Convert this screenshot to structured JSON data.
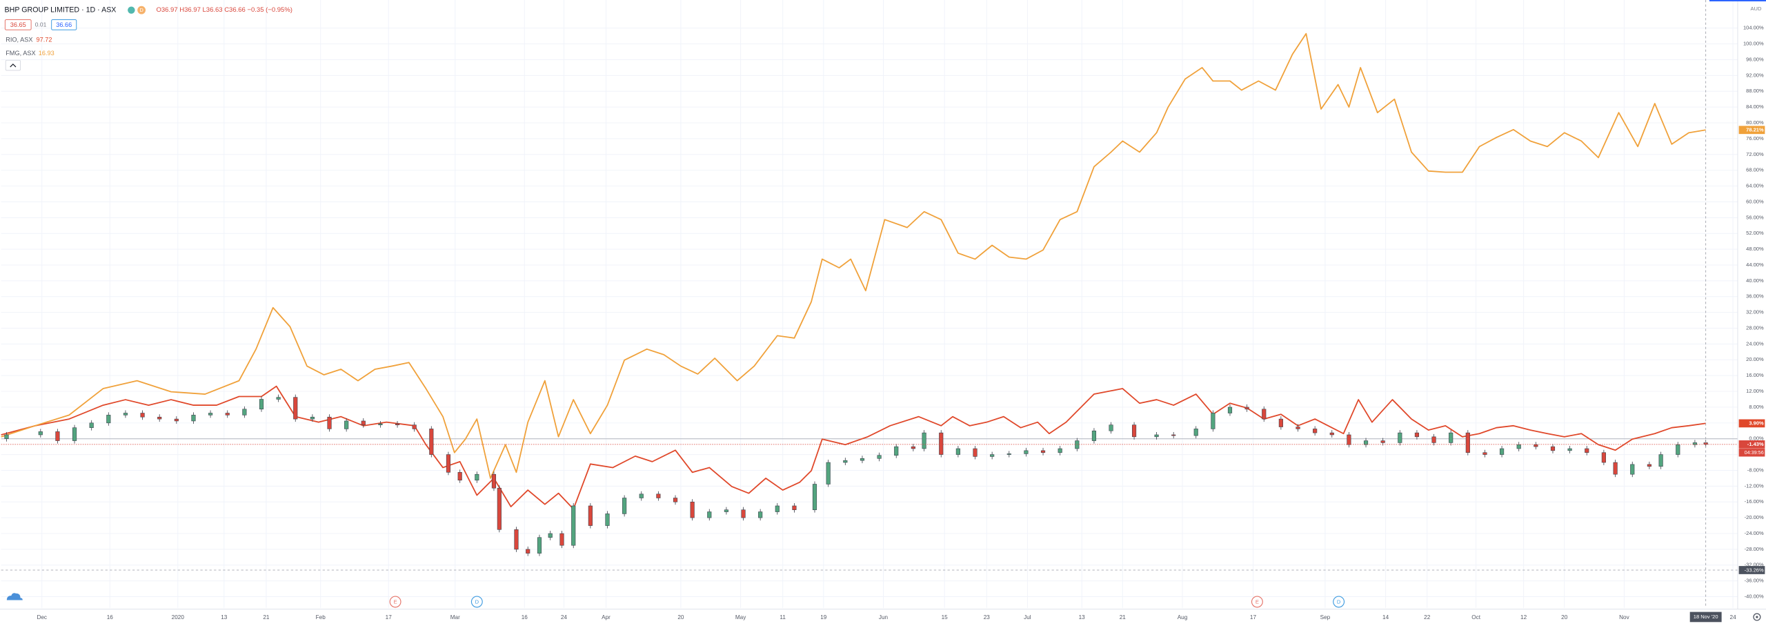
{
  "chart_data": {
    "type": "candlestick",
    "title": "BHP GROUP LIMITED · 1D · ASX",
    "interval_badge": "D",
    "ohlc_text": "O36.97 H36.97 L36.63 C36.66 −0.35 (−0.95%)",
    "bid": "36.65",
    "spread": "0.01",
    "ask": "36.66",
    "currency": "AUD",
    "grid": true,
    "baseline": 0,
    "xlim": [
      0,
      255.5
    ],
    "ylim": [
      -42.86,
      111.12
    ],
    "xticks": [
      {
        "value": 6,
        "label": "Dec"
      },
      {
        "value": 16,
        "label": "16"
      },
      {
        "value": 26,
        "label": "2020"
      },
      {
        "value": 32.8,
        "label": "13"
      },
      {
        "value": 39,
        "label": "21"
      },
      {
        "value": 47,
        "label": "Feb"
      },
      {
        "value": 57,
        "label": "17"
      },
      {
        "value": 66.8,
        "label": "Mar"
      },
      {
        "value": 77,
        "label": "16"
      },
      {
        "value": 82.8,
        "label": "24"
      },
      {
        "value": 89,
        "label": "Apr"
      },
      {
        "value": 100,
        "label": "20"
      },
      {
        "value": 108.8,
        "label": "May"
      },
      {
        "value": 115,
        "label": "11"
      },
      {
        "value": 121,
        "label": "19"
      },
      {
        "value": 129.8,
        "label": "Jun"
      },
      {
        "value": 138.8,
        "label": "15"
      },
      {
        "value": 145,
        "label": "23"
      },
      {
        "value": 151,
        "label": "Jul"
      },
      {
        "value": 159,
        "label": "13"
      },
      {
        "value": 165,
        "label": "21"
      },
      {
        "value": 173.8,
        "label": "Aug"
      },
      {
        "value": 184.2,
        "label": "17"
      },
      {
        "value": 194.8,
        "label": "Sep"
      },
      {
        "value": 203.7,
        "label": "14"
      },
      {
        "value": 209.8,
        "label": "22"
      },
      {
        "value": 217,
        "label": "Oct"
      },
      {
        "value": 224,
        "label": "12"
      },
      {
        "value": 230,
        "label": "20"
      },
      {
        "value": 238.8,
        "label": "Nov"
      },
      {
        "value": 254.8,
        "label": "24"
      }
    ],
    "yticks": [
      {
        "value": -40,
        "label": "-40.00%"
      },
      {
        "value": -36,
        "label": "-36.00%"
      },
      {
        "value": -32,
        "label": "-32.00%"
      },
      {
        "value": -28,
        "label": "-28.00%"
      },
      {
        "value": -24,
        "label": "-24.00%"
      },
      {
        "value": -20,
        "label": "-20.00%"
      },
      {
        "value": -16,
        "label": "-16.00%"
      },
      {
        "value": -12,
        "label": "-12.00%"
      },
      {
        "value": -8,
        "label": "-8.00%"
      },
      {
        "value": -4,
        "label": "-4.00%"
      },
      {
        "value": 0,
        "label": "0.00%"
      },
      {
        "value": 4,
        "label": "4.00%"
      },
      {
        "value": 8,
        "label": "8.00%"
      },
      {
        "value": 12,
        "label": "12.00%"
      },
      {
        "value": 16,
        "label": "16.00%"
      },
      {
        "value": 20,
        "label": "20.00%"
      },
      {
        "value": 24,
        "label": "24.00%"
      },
      {
        "value": 28,
        "label": "28.00%"
      },
      {
        "value": 32,
        "label": "32.00%"
      },
      {
        "value": 36,
        "label": "36.00%"
      },
      {
        "value": 40,
        "label": "40.00%"
      },
      {
        "value": 44,
        "label": "44.00%"
      },
      {
        "value": 48,
        "label": "48.00%"
      },
      {
        "value": 52,
        "label": "52.00%"
      },
      {
        "value": 56,
        "label": "56.00%"
      },
      {
        "value": 60,
        "label": "60.00%"
      },
      {
        "value": 64,
        "label": "64.00%"
      },
      {
        "value": 68,
        "label": "68.00%"
      },
      {
        "value": 72,
        "label": "72.00%"
      },
      {
        "value": 76,
        "label": "76.00%"
      },
      {
        "value": 80,
        "label": "80.00%"
      },
      {
        "value": 84,
        "label": "84.00%"
      },
      {
        "value": 88,
        "label": "88.00%"
      },
      {
        "value": 92,
        "label": "92.00%"
      },
      {
        "value": 96,
        "label": "96.00%"
      },
      {
        "value": 100,
        "label": "100.00%"
      },
      {
        "value": 104,
        "label": "104.00%"
      }
    ],
    "series": [
      {
        "name": "BHP GROUP LIMITED",
        "type": "candlestick",
        "up_color": "#53a57f",
        "down_color": "#d9473c",
        "last_label": "-1.43%",
        "countdown": "04:39:56",
        "x": [
          0.8,
          5.8,
          8.3,
          10.8,
          13.3,
          15.8,
          18.3,
          20.8,
          23.3,
          25.8,
          28.3,
          30.8,
          33.3,
          35.8,
          38.3,
          40.8,
          43.3,
          45.8,
          48.3,
          50.8,
          53.3,
          55.8,
          58.3,
          60.8,
          63.3,
          65.8,
          67.5,
          70,
          72.5,
          73.3,
          75.8,
          77.5,
          79.2,
          80.8,
          82.5,
          84.2,
          86.7,
          89.2,
          91.7,
          94.2,
          96.7,
          99.2,
          101.7,
          104.2,
          106.7,
          109.2,
          111.7,
          114.2,
          116.7,
          119.7,
          121.7,
          124.2,
          126.7,
          129.2,
          131.7,
          134.2,
          135.8,
          138.3,
          140.8,
          143.3,
          145.8,
          148.3,
          150.8,
          153.3,
          155.8,
          158.3,
          160.8,
          163.3,
          166.7,
          170,
          172.5,
          175.8,
          178.3,
          180.8,
          183.3,
          185.8,
          188.3,
          190.8,
          193.3,
          195.8,
          198.3,
          200.8,
          203.3,
          205.8,
          208.3,
          210.8,
          213.3,
          215.8,
          218.3,
          220.8,
          223.3,
          225.8,
          228.3,
          230.8,
          233.3,
          235.8,
          237.5,
          240,
          242.5,
          244.2,
          246.7,
          249.2,
          250.8
        ],
        "open": [
          0,
          1,
          1.8,
          -0.5,
          2.8,
          4,
          6,
          6.5,
          5.5,
          5,
          4.5,
          6,
          6.5,
          6,
          7.5,
          10,
          10.5,
          5,
          5.5,
          2.5,
          4.5,
          3.5,
          3.8,
          3.5,
          2.5,
          -4,
          -8.5,
          -10.5,
          -9,
          -12.5,
          -23,
          -28,
          -29,
          -25,
          -24,
          -27,
          -17,
          -22,
          -19,
          -15,
          -14,
          -15,
          -16,
          -20,
          -18.5,
          -18,
          -20,
          -18.5,
          -17,
          -18,
          -11.5,
          -6,
          -5.5,
          -5,
          -4.2,
          -2,
          -2.5,
          1.5,
          -4,
          -2.5,
          -4.5,
          -4,
          -3.8,
          -3,
          -3.5,
          -2.5,
          -0.5,
          2,
          3.5,
          0.5,
          1,
          0.8,
          2.5,
          6.5,
          8,
          7.5,
          5,
          3,
          2.5,
          1.5,
          1,
          -1.5,
          -0.5,
          -1,
          1.5,
          0.5,
          -1,
          1.5,
          -3.5,
          -4,
          -2.5,
          -1.5,
          -2,
          -3,
          -2.5,
          -3.5,
          -6,
          -9,
          -6.5,
          -7,
          -4,
          -1.5,
          -1
        ],
        "high": [
          1.7,
          2.5,
          2.5,
          3.5,
          4.7,
          6.7,
          7.2,
          7.2,
          6.2,
          5.7,
          6.7,
          7.2,
          7.2,
          8.2,
          10.7,
          11.2,
          11.2,
          6.2,
          6.2,
          5.2,
          5.2,
          4.5,
          4.5,
          4.2,
          3.2,
          -3.3,
          -7.8,
          -8.3,
          -8.3,
          -11.8,
          -22.3,
          -27.3,
          -24.3,
          -23.3,
          -23.3,
          -16.3,
          -16.3,
          -18.3,
          -14.3,
          -13.3,
          -13.3,
          -14.3,
          -15.3,
          -17.8,
          -17.3,
          -17.3,
          -17.8,
          -16.3,
          -16.3,
          -10.8,
          -5.3,
          -4.8,
          -4.3,
          -3.5,
          -1.3,
          -1.3,
          2.2,
          2.2,
          -1.8,
          -1.8,
          -3.3,
          -3.1,
          -2.3,
          -2.3,
          -1.8,
          0.2,
          2.7,
          4.2,
          4.2,
          1.7,
          1.7,
          3.2,
          7.2,
          8.7,
          8.7,
          8.2,
          5.7,
          3.7,
          3.2,
          2.2,
          1.7,
          0.2,
          0.2,
          2.2,
          2.2,
          1.2,
          2.2,
          2.2,
          -2.8,
          -1.8,
          -0.8,
          -0.8,
          -1.3,
          -1.8,
          -1.8,
          -2.8,
          -5.3,
          -5.8,
          -5.8,
          -3.3,
          -0.8,
          -0.3,
          -0.3
        ],
        "low": [
          -0.7,
          0.3,
          -1.2,
          -1.2,
          2.1,
          3.3,
          5.3,
          4.8,
          4.3,
          3.8,
          3.8,
          5.3,
          5.3,
          5.3,
          6.8,
          9.3,
          4.3,
          4.3,
          1.8,
          1.8,
          2.8,
          2.8,
          2.8,
          1.8,
          -4.7,
          -9.2,
          -11.2,
          -11.2,
          -13.2,
          -23.7,
          -28.7,
          -29.7,
          -29.7,
          -25.7,
          -27.7,
          -27.7,
          -22.7,
          -22.7,
          -19.7,
          -15.7,
          -15.7,
          -16.7,
          -20.7,
          -20.7,
          -19.2,
          -20.7,
          -20.7,
          -19.2,
          -18.7,
          -18.7,
          -12.2,
          -6.7,
          -6.2,
          -5.7,
          -4.9,
          -3.2,
          -3.2,
          -4.7,
          -4.7,
          -5.2,
          -5.2,
          -4.7,
          -4.5,
          -4.2,
          -4.2,
          -3.2,
          -1.2,
          1.3,
          -0.2,
          -0.2,
          0.1,
          0.1,
          1.8,
          5.8,
          6.8,
          4.3,
          2.3,
          1.8,
          0.8,
          0.3,
          -2.2,
          -2.2,
          -1.7,
          -1.7,
          -0.2,
          -1.7,
          -1.7,
          -4.2,
          -4.7,
          -4.7,
          -3.2,
          -2.7,
          -3.7,
          -3.7,
          -4.2,
          -6.7,
          -9.7,
          -9.7,
          -7.7,
          -7.7,
          -4.7,
          -2.2,
          -2.13
        ],
        "close": [
          1,
          1.8,
          -0.5,
          2.8,
          4,
          6,
          6.5,
          5.5,
          5,
          4.5,
          6,
          6.5,
          6,
          7.5,
          10,
          10.5,
          5,
          5.5,
          2.5,
          4.5,
          3.5,
          3.8,
          3.5,
          2.5,
          -4,
          -8.5,
          -10.5,
          -9,
          -12.5,
          -23,
          -28,
          -29,
          -25,
          -24,
          -27,
          -17,
          -22,
          -19,
          -15,
          -14,
          -15,
          -16,
          -20,
          -18.5,
          -18,
          -20,
          -18.5,
          -17,
          -18,
          -11.5,
          -6,
          -5.5,
          -5,
          -4.2,
          -2,
          -2.5,
          1.5,
          -4,
          -2.5,
          -4.5,
          -4,
          -3.8,
          -3,
          -3.5,
          -2.5,
          -0.5,
          2,
          3.5,
          0.5,
          1,
          0.8,
          2.5,
          6.5,
          8,
          7.5,
          5,
          3,
          2.5,
          1.5,
          1,
          -1.5,
          -0.5,
          -1,
          1.5,
          0.5,
          -1,
          1.5,
          -3.5,
          -4,
          -2.5,
          -1.5,
          -2,
          -3,
          -2.5,
          -3.5,
          -6,
          -9,
          -6.5,
          -7,
          -4,
          -1.5,
          -1,
          -1.43
        ]
      },
      {
        "name": "RIO, ASX",
        "legend_value": "97.72",
        "type": "line",
        "color": "#e0482a",
        "last_label": "3.90%",
        "x": [
          0,
          5,
          10,
          15,
          18.3,
          21.7,
          25,
          28.3,
          31.7,
          35,
          38.3,
          40.5,
          43.3,
          46.7,
          50,
          53.3,
          56.7,
          60.8,
          62.5,
          65,
          67.5,
          70,
          72.5,
          75,
          77.5,
          80,
          82,
          84.2,
          86.7,
          90,
          93.3,
          95.8,
          99.2,
          101.7,
          104.2,
          107.5,
          110,
          112.5,
          115,
          117.5,
          119.2,
          120.8,
          124.2,
          127.5,
          130.8,
          135,
          138.3,
          140,
          142.5,
          145,
          147.5,
          150,
          152.5,
          154.2,
          156.7,
          160.8,
          165,
          167.5,
          170,
          172.5,
          175.8,
          178.3,
          180.8,
          183.3,
          185.8,
          188.3,
          190.8,
          193.3,
          195.8,
          197.5,
          199.7,
          201.7,
          204.7,
          207.5,
          210,
          212.5,
          215,
          217.5,
          220,
          222.5,
          225,
          227.5,
          230,
          232.5,
          235,
          237.5,
          240,
          243.3,
          245.8,
          248.3,
          250.8
        ],
        "values": [
          1,
          3.3,
          5,
          8.5,
          9.9,
          8.5,
          9.9,
          8.5,
          8.5,
          10.7,
          10.7,
          13.3,
          5.6,
          4.2,
          5.6,
          3.3,
          4.2,
          3.3,
          -1.5,
          -7.3,
          -5.8,
          -14.3,
          -10,
          -17.2,
          -13,
          -16.6,
          -13.8,
          -17.8,
          -6.4,
          -7.3,
          -4.4,
          -5.8,
          -2.9,
          -8.5,
          -7.3,
          -12.1,
          -13.8,
          -10,
          -13,
          -11,
          -8.1,
          -0.1,
          -1.5,
          0.5,
          3.3,
          5.6,
          3.3,
          5.6,
          3.3,
          4.2,
          5.6,
          2.8,
          4.2,
          1.3,
          4.2,
          11.3,
          12.7,
          9,
          9.9,
          8.5,
          11.3,
          6.2,
          9,
          7.8,
          5,
          6.2,
          3.3,
          5,
          2.8,
          1.3,
          9.9,
          4.2,
          9.9,
          5,
          2.2,
          3.3,
          0.5,
          1.3,
          2.8,
          3.3,
          2.2,
          1.3,
          0.5,
          1.3,
          -1.5,
          -2.9,
          -0.1,
          1.3,
          2.8,
          3.3,
          3.9
        ]
      },
      {
        "name": "FMG, ASX",
        "legend_value": "16.93",
        "type": "line",
        "color": "#f0a13a",
        "last_label": "78.21%",
        "x": [
          0,
          5,
          10,
          15,
          20,
          25,
          30,
          35,
          37.5,
          40,
          42.5,
          45,
          47.5,
          50,
          52.5,
          55,
          57.5,
          60,
          62.5,
          65,
          66.7,
          68.3,
          70,
          72,
          74.2,
          75.8,
          77.5,
          80,
          82,
          84.2,
          86.7,
          89.2,
          91.7,
          95,
          97.5,
          100,
          102.5,
          105,
          108.3,
          110.8,
          114.2,
          116.7,
          119.2,
          120.8,
          123.3,
          125,
          127.2,
          130,
          133.3,
          135.8,
          138.3,
          140.8,
          143.3,
          145.8,
          148.3,
          150.8,
          153.3,
          155.8,
          158.3,
          160.8,
          163.3,
          165,
          167.5,
          170,
          171.7,
          174.2,
          176.7,
          178.3,
          180.8,
          182.5,
          185,
          187.5,
          190,
          192,
          194.2,
          196.7,
          198.3,
          200,
          202.5,
          205,
          207.5,
          210,
          212.5,
          215,
          217.5,
          220,
          222.5,
          225,
          227.5,
          230,
          232.5,
          235,
          238,
          240.8,
          243.3,
          245.8,
          248.3,
          250.8
        ],
        "values": [
          0.5,
          3.3,
          6,
          12.7,
          14.7,
          11.9,
          11.3,
          14.7,
          22.7,
          33.2,
          28.4,
          18.4,
          16.2,
          17.6,
          14.7,
          17.6,
          18.4,
          19.3,
          12.7,
          5.6,
          -3.5,
          -0.1,
          5,
          -10,
          -1.5,
          -8.5,
          4.2,
          14.7,
          0.5,
          9.9,
          1.3,
          8.5,
          19.9,
          22.7,
          21.3,
          18.4,
          16.4,
          20.4,
          14.7,
          18.4,
          26.1,
          25.5,
          34.7,
          45.5,
          43.3,
          45.5,
          37.5,
          55.5,
          53.5,
          57.5,
          55.5,
          47,
          45.5,
          49,
          46,
          45.5,
          47.8,
          55.5,
          57.5,
          68.9,
          72.6,
          75.4,
          72.6,
          77.5,
          84,
          91.1,
          94,
          90.6,
          90.6,
          88.3,
          90.6,
          88.3,
          97.4,
          102.6,
          83.5,
          89.7,
          84,
          94,
          82.6,
          86,
          72.6,
          67.8,
          67.5,
          67.5,
          74,
          76.3,
          78.3,
          75.4,
          74,
          77.5,
          75.4,
          71.2,
          82.6,
          74,
          84.9,
          74.6,
          77.5,
          78.21
        ]
      }
    ],
    "events": [
      {
        "x": 58,
        "label": "E",
        "color": "#e57368"
      },
      {
        "x": 70,
        "label": "D",
        "color": "#3f9be0"
      },
      {
        "x": 184.8,
        "label": "E",
        "color": "#e57368"
      },
      {
        "x": 196.8,
        "label": "D",
        "color": "#3f9be0"
      }
    ],
    "crosshair": {
      "x": 250.8,
      "y": -33.26,
      "x_label": "18 Nov '20",
      "y_label": "-33.26%"
    }
  }
}
